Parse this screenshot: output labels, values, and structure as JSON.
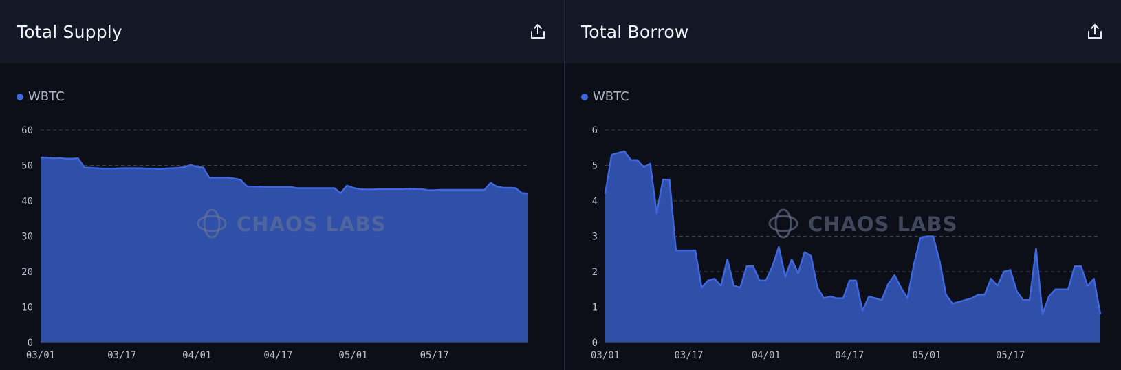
{
  "colors": {
    "series": "#3f67e0",
    "area": "#3153b0",
    "grid": "#3a4152",
    "tick": "#b9bfcc"
  },
  "icons": {
    "export": "share-upload-icon",
    "watermark": "chaos-labs-logo"
  },
  "watermark": "CHAOS LABS",
  "chart_data": [
    {
      "type": "area",
      "title": "Total Supply",
      "legend": "top-left",
      "grid": true,
      "series": [
        {
          "name": "WBTC",
          "values": [
            52.2,
            52.2,
            52.0,
            52.1,
            51.9,
            51.9,
            52.0,
            49.4,
            49.3,
            49.2,
            49.1,
            49.1,
            49.1,
            49.2,
            49.2,
            49.2,
            49.2,
            49.1,
            49.1,
            49.0,
            49.1,
            49.2,
            49.3,
            49.5,
            50.1,
            49.6,
            49.4,
            46.5,
            46.5,
            46.5,
            46.5,
            46.3,
            45.9,
            44.1,
            44.0,
            44.0,
            43.9,
            43.9,
            43.9,
            43.9,
            43.9,
            43.6,
            43.6,
            43.6,
            43.6,
            43.6,
            43.6,
            43.6,
            42.2,
            44.3,
            43.7,
            43.3,
            43.2,
            43.2,
            43.3,
            43.3,
            43.3,
            43.3,
            43.3,
            43.4,
            43.3,
            43.3,
            43.0,
            43.0,
            43.1,
            43.1,
            43.1,
            43.1,
            43.1,
            43.1,
            43.1,
            43.1,
            45.1,
            44.0,
            43.7,
            43.7,
            43.6,
            42.2,
            42.1
          ]
        }
      ],
      "x_ticks": [
        "03/01",
        "03/17",
        "04/01",
        "04/17",
        "05/01",
        "05/17"
      ],
      "x_tick_index": [
        0,
        13,
        25,
        38,
        50,
        63
      ],
      "ylim": [
        0,
        60
      ],
      "y_ticks": [
        0,
        10,
        20,
        30,
        40,
        50,
        60
      ]
    },
    {
      "type": "area",
      "title": "Total Borrow",
      "legend": "top-left",
      "grid": true,
      "series": [
        {
          "name": "WBTC",
          "values": [
            4.2,
            5.3,
            5.35,
            5.4,
            5.15,
            5.15,
            4.95,
            5.05,
            3.65,
            4.6,
            4.6,
            2.6,
            2.6,
            2.6,
            2.6,
            1.55,
            1.75,
            1.8,
            1.6,
            2.35,
            1.6,
            1.55,
            2.15,
            2.15,
            1.75,
            1.75,
            2.15,
            2.7,
            1.85,
            2.35,
            1.95,
            2.55,
            2.45,
            1.55,
            1.25,
            1.3,
            1.25,
            1.25,
            1.75,
            1.75,
            0.9,
            1.3,
            1.25,
            1.2,
            1.65,
            1.9,
            1.55,
            1.25,
            2.2,
            2.95,
            3.0,
            3.0,
            2.3,
            1.35,
            1.1,
            1.15,
            1.2,
            1.25,
            1.35,
            1.35,
            1.8,
            1.6,
            2.0,
            2.05,
            1.45,
            1.2,
            1.2,
            2.65,
            0.8,
            1.3,
            1.5,
            1.5,
            1.5,
            2.15,
            2.15,
            1.6,
            1.8,
            0.8
          ]
        }
      ],
      "x_ticks": [
        "03/01",
        "03/17",
        "04/01",
        "04/17",
        "05/01",
        "05/17"
      ],
      "x_tick_index": [
        0,
        13,
        25,
        38,
        50,
        63
      ],
      "ylim": [
        0,
        6
      ],
      "y_ticks": [
        0,
        1,
        2,
        3,
        4,
        5,
        6
      ]
    }
  ]
}
